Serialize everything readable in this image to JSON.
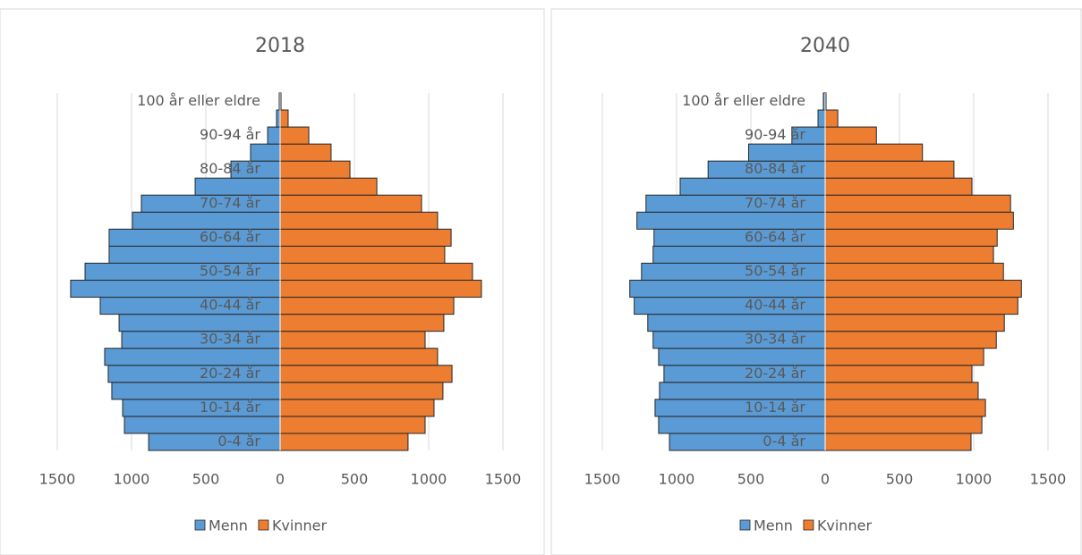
{
  "chart_data": [
    {
      "type": "bar",
      "orientation": "horizontal",
      "title": "2018",
      "categories": [
        "0-4 år",
        null,
        "10-14 år",
        null,
        "20-24 år",
        null,
        "30-34 år",
        null,
        "40-44 år",
        null,
        "50-54 år",
        null,
        "60-64 år",
        null,
        "70-74 år",
        null,
        "80-84 år",
        null,
        "90-94 år",
        null,
        "100 år eller eldre"
      ],
      "series": [
        {
          "name": "Menn",
          "color": "#5b9bd5",
          "values": [
            -885,
            -1048,
            -1060,
            -1133,
            -1157,
            -1181,
            -1066,
            -1084,
            -1211,
            -1410,
            -1313,
            -1151,
            -1151,
            -994,
            -934,
            -572,
            -331,
            -199,
            -84,
            -24,
            -6
          ]
        },
        {
          "name": "Kvinner",
          "color": "#ed7d31",
          "values": [
            861,
            976,
            1036,
            1096,
            1157,
            1060,
            976,
            1102,
            1169,
            1355,
            1295,
            1108,
            1151,
            1060,
            952,
            651,
            470,
            343,
            193,
            54,
            6
          ]
        }
      ],
      "xlim": [
        -1500,
        1500
      ],
      "xticks": [
        {
          "value": -1500,
          "label": "1500"
        },
        {
          "value": -1000,
          "label": "1000"
        },
        {
          "value": -500,
          "label": "500"
        },
        0,
        500,
        1000,
        1500
      ],
      "grid": true,
      "legend": "bottom"
    },
    {
      "type": "bar",
      "orientation": "horizontal",
      "title": "2040",
      "categories": [
        "0-4 år",
        null,
        "10-14 år",
        null,
        "20-24 år",
        null,
        "30-34 år",
        null,
        "40-44 år",
        null,
        "50-54 år",
        null,
        "60-64 år",
        null,
        "70-74 år",
        null,
        "80-84 år",
        null,
        "90-94 år",
        null,
        "100 år eller eldre"
      ],
      "series": [
        {
          "name": "Menn",
          "color": "#5b9bd5",
          "values": [
            -1048,
            -1121,
            -1145,
            -1115,
            -1085,
            -1121,
            -1158,
            -1194,
            -1285,
            -1315,
            -1236,
            -1158,
            -1152,
            -1267,
            -1206,
            -976,
            -788,
            -515,
            -224,
            -48,
            -12
          ]
        },
        {
          "name": "Kvinner",
          "color": "#ed7d31",
          "values": [
            982,
            1055,
            1079,
            1030,
            988,
            1067,
            1152,
            1206,
            1297,
            1321,
            1200,
            1133,
            1158,
            1267,
            1248,
            988,
            867,
            655,
            345,
            85,
            6
          ]
        }
      ],
      "xlim": [
        -1500,
        1500
      ],
      "xticks": [
        {
          "value": -1500,
          "label": "1500"
        },
        {
          "value": -1000,
          "label": "1000"
        },
        {
          "value": -500,
          "label": "500"
        },
        0,
        500,
        1000,
        1500
      ],
      "grid": true,
      "legend": "bottom"
    }
  ]
}
